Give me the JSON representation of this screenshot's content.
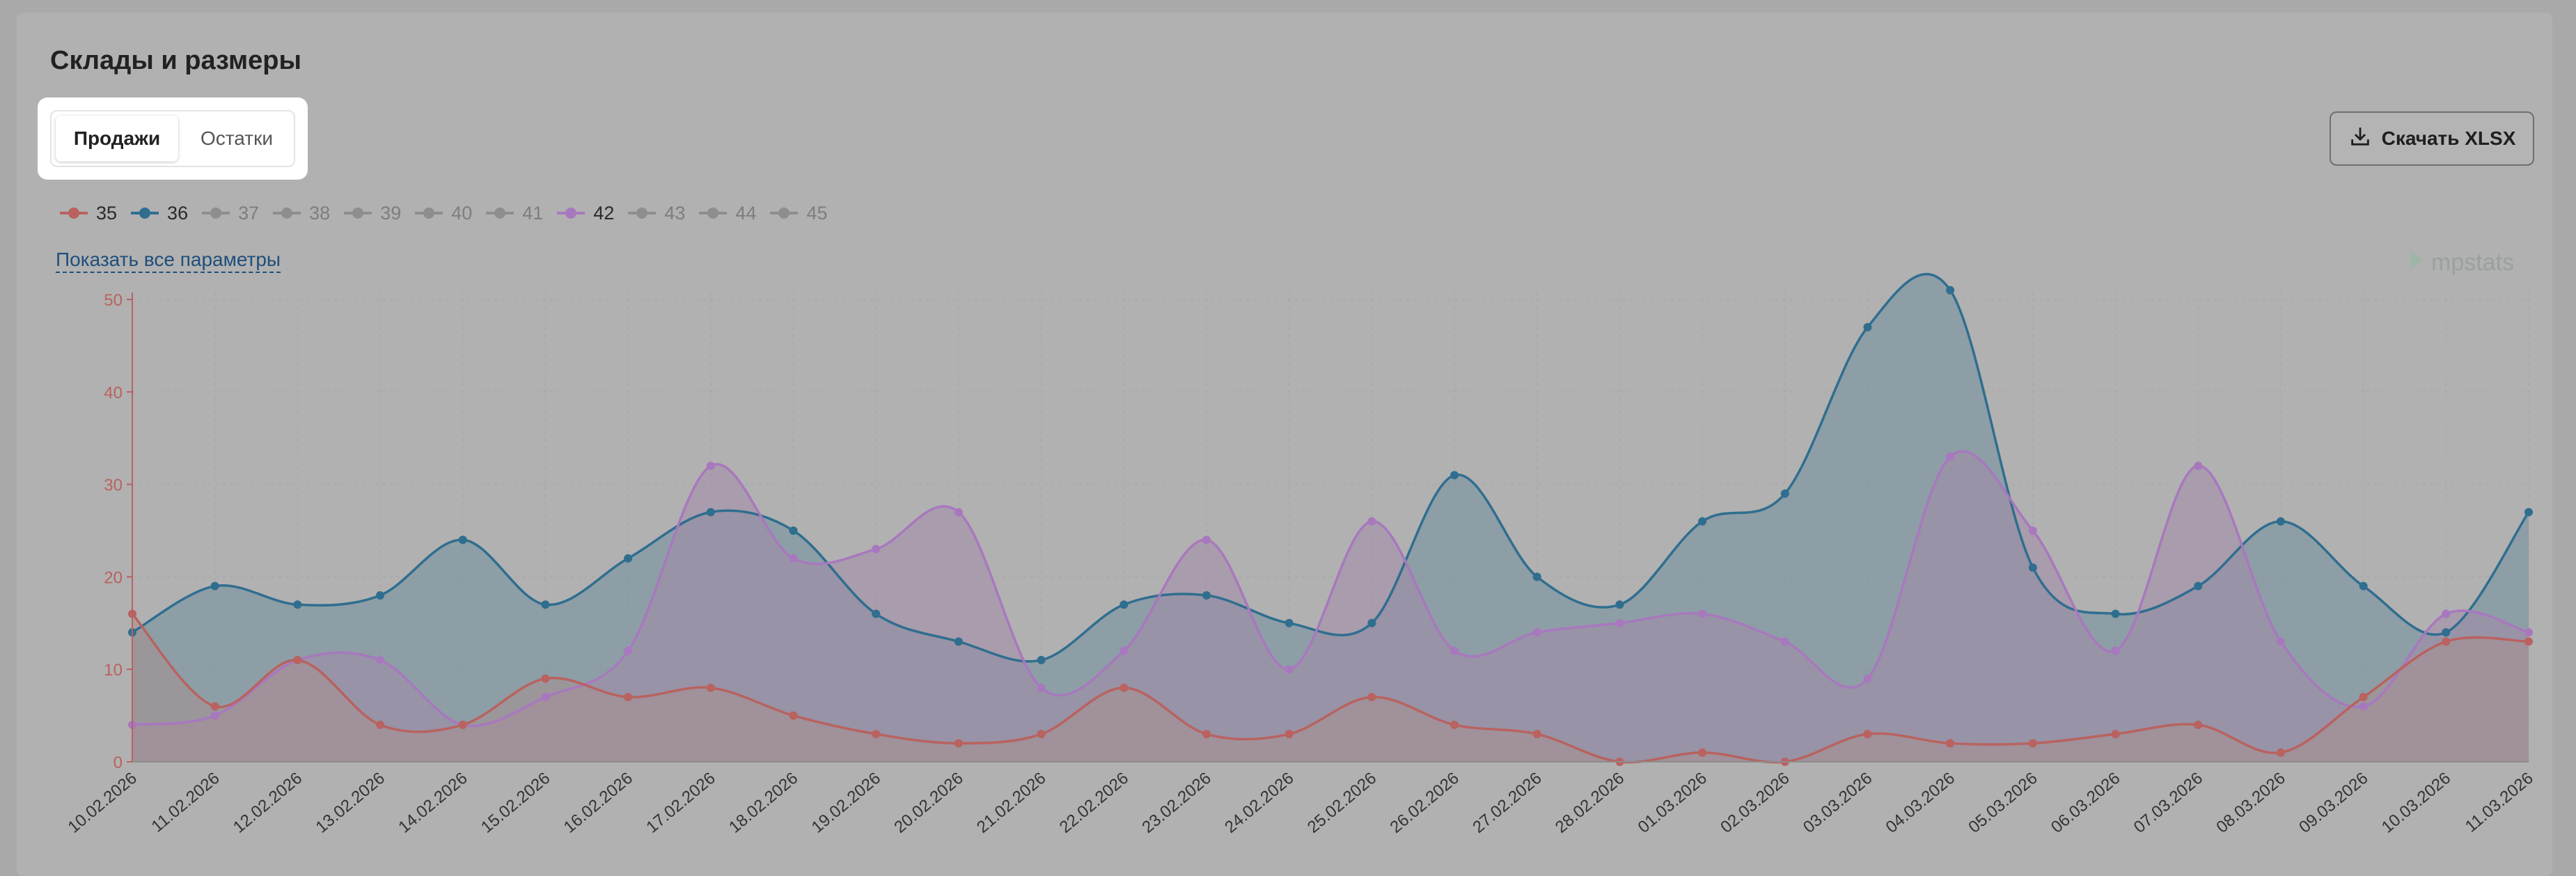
{
  "section_title": "Склады и размеры",
  "tabs": [
    {
      "label": "Продажи",
      "active": true
    },
    {
      "label": "Остатки",
      "active": false
    }
  ],
  "download_button": {
    "label": "Скачать XLSX",
    "icon": "download-icon"
  },
  "show_all_label": "Показать все параметры",
  "watermark": "mpstats",
  "legend": [
    {
      "label": "35",
      "color": "#b9625f",
      "active": true
    },
    {
      "label": "36",
      "color": "#2f6e8f",
      "active": true
    },
    {
      "label": "37",
      "color": "#8e8e8e",
      "active": false
    },
    {
      "label": "38",
      "color": "#8e8e8e",
      "active": false
    },
    {
      "label": "39",
      "color": "#8e8e8e",
      "active": false
    },
    {
      "label": "40",
      "color": "#8e8e8e",
      "active": false
    },
    {
      "label": "41",
      "color": "#8e8e8e",
      "active": false
    },
    {
      "label": "42",
      "color": "#a878be",
      "active": true
    },
    {
      "label": "43",
      "color": "#8e8e8e",
      "active": false
    },
    {
      "label": "44",
      "color": "#8e8e8e",
      "active": false
    },
    {
      "label": "45",
      "color": "#8e8e8e",
      "active": false
    }
  ],
  "chart_data": {
    "type": "area",
    "categories": [
      "10.02.2026",
      "11.02.2026",
      "12.02.2026",
      "13.02.2026",
      "14.02.2026",
      "15.02.2026",
      "16.02.2026",
      "17.02.2026",
      "18.02.2026",
      "19.02.2026",
      "20.02.2026",
      "21.02.2026",
      "22.02.2026",
      "23.02.2026",
      "24.02.2026",
      "25.02.2026",
      "26.02.2026",
      "27.02.2026",
      "28.02.2026",
      "01.03.2026",
      "02.03.2026",
      "03.03.2026",
      "04.03.2026",
      "05.03.2026",
      "06.03.2026",
      "07.03.2026",
      "08.03.2026",
      "09.03.2026",
      "10.03.2026",
      "11.03.2026"
    ],
    "ylim": [
      0,
      50
    ],
    "yticks": [
      0,
      10,
      20,
      30,
      40,
      50
    ],
    "axis_color": "#b9625f",
    "grid": true,
    "series": [
      {
        "name": "36",
        "color": "#2f6e8f",
        "fill": "#6f8e9c",
        "values": [
          14,
          19,
          17,
          18,
          24,
          17,
          22,
          27,
          25,
          16,
          13,
          11,
          17,
          18,
          15,
          15,
          31,
          20,
          17,
          26,
          29,
          47,
          51,
          21,
          16,
          19,
          26,
          19,
          14,
          27
        ]
      },
      {
        "name": "42",
        "color": "#a878be",
        "fill": "#a38aa8",
        "values": [
          4,
          5,
          11,
          11,
          4,
          7,
          12,
          32,
          22,
          23,
          27,
          8,
          12,
          24,
          10,
          26,
          12,
          14,
          15,
          16,
          13,
          9,
          33,
          25,
          12,
          32,
          13,
          6,
          16,
          14
        ]
      },
      {
        "name": "35",
        "color": "#b9625f",
        "fill": "#a78f8f",
        "values": [
          16,
          6,
          11,
          4,
          4,
          9,
          7,
          8,
          5,
          3,
          2,
          3,
          8,
          3,
          3,
          7,
          4,
          3,
          0,
          1,
          0,
          3,
          2,
          2,
          3,
          4,
          1,
          7,
          13,
          13
        ]
      }
    ]
  }
}
